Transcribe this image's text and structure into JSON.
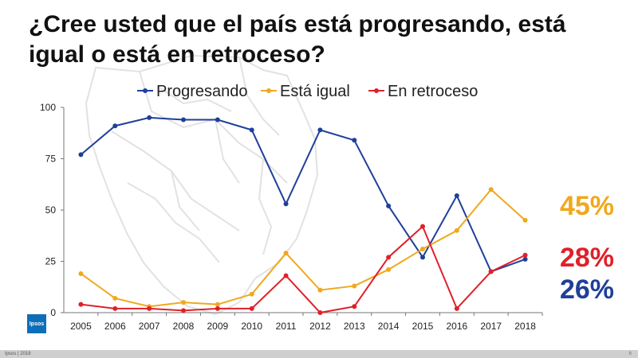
{
  "title": "¿Cree usted que el país está progresando, está igual o está en retroceso?",
  "colors": {
    "progresando": "#1f3f99",
    "igual": "#f0a81e",
    "retroceso": "#e0202a"
  },
  "callouts": {
    "igual": "45%",
    "retroceso": "28%",
    "progresando": "26%"
  },
  "footer": {
    "left": "Ipsos | 2018",
    "page": "6"
  },
  "logo_text": "Ipsos",
  "chart_data": {
    "type": "line",
    "title": "¿Cree usted que el país está progresando, está igual o está en retroceso?",
    "x": [
      "2005",
      "2006",
      "2007",
      "2008",
      "2009",
      "2010",
      "2011",
      "2012",
      "2013",
      "2014",
      "2015",
      "2016",
      "2017",
      "2018"
    ],
    "ylim": [
      0,
      100
    ],
    "yticks": [
      0,
      25,
      50,
      75,
      100
    ],
    "legend_position": "top",
    "grid": false,
    "series": [
      {
        "name": "Progresando",
        "color": "#1f3f99",
        "values": [
          77,
          91,
          95,
          94,
          94,
          89,
          53,
          89,
          84,
          52,
          27,
          57,
          20,
          26
        ]
      },
      {
        "name": "Está igual",
        "color": "#f0a81e",
        "values": [
          19,
          7,
          3,
          5,
          4,
          9,
          29,
          11,
          13,
          21,
          31,
          40,
          60,
          45
        ]
      },
      {
        "name": "En retroceso",
        "color": "#e0202a",
        "values": [
          4,
          2,
          2,
          1,
          2,
          2,
          18,
          0,
          3,
          27,
          42,
          2,
          20,
          28
        ]
      }
    ]
  }
}
